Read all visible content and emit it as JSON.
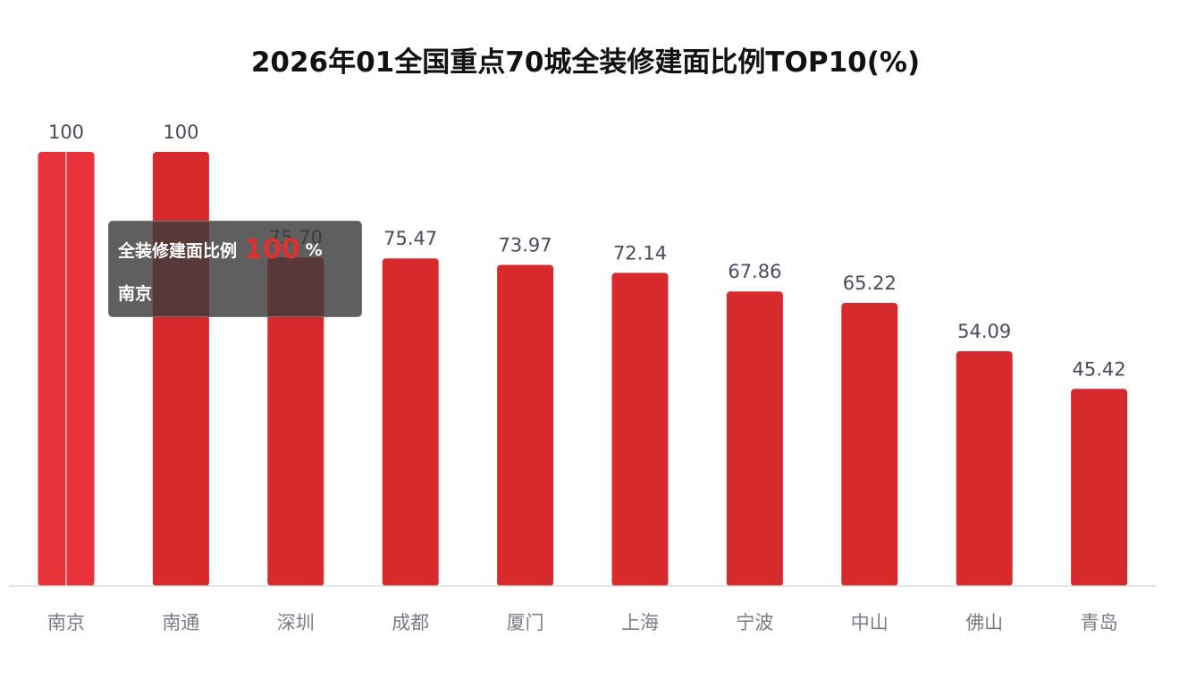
{
  "chart_data": {
    "type": "bar",
    "title": "2026年01全国重点70城全装修建面比例TOP10(%)",
    "categories": [
      "南京",
      "南通",
      "深圳",
      "成都",
      "厦门",
      "上海",
      "宁波",
      "中山",
      "佛山",
      "青岛"
    ],
    "values": [
      100,
      100,
      75.7,
      75.47,
      73.97,
      72.14,
      67.86,
      65.22,
      54.09,
      45.42
    ],
    "value_labels": [
      "100",
      "100",
      "75.70",
      "75.47",
      "73.97",
      "72.14",
      "67.86",
      "65.22",
      "54.09",
      "45.42"
    ],
    "ylim": [
      0,
      100
    ],
    "grid": false,
    "bar_color": "#d62a2d",
    "highlight_color": "#e8323a",
    "highlight_index": 0
  },
  "tooltip": {
    "series_name": "全装修建面比例",
    "value": "100",
    "unit": "%",
    "category": "南京"
  }
}
